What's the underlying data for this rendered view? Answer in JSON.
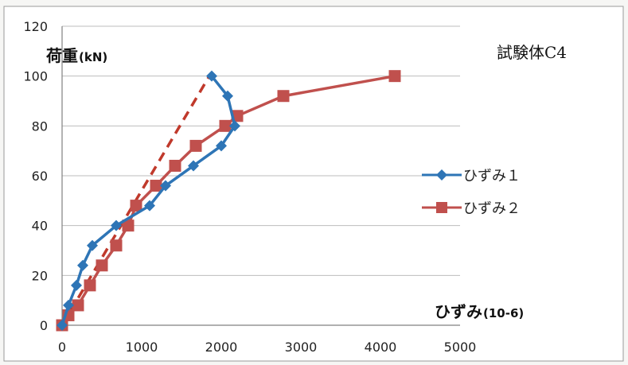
{
  "chart_data": {
    "type": "line",
    "title": "試験体C4",
    "ylabel_main": "荷重",
    "ylabel_unit": "(kN)",
    "xlabel_main": "ひずみ",
    "xlabel_unit": "(10-6)",
    "xlim": [
      0,
      5000
    ],
    "ylim": [
      0,
      120
    ],
    "x_ticks": [
      "0",
      "1000",
      "2000",
      "3000",
      "4000",
      "5000"
    ],
    "y_ticks": [
      "0",
      "20",
      "40",
      "60",
      "80",
      "100",
      "120"
    ],
    "grid": true,
    "legend_position": "right",
    "series": [
      {
        "name": "ひずみ１",
        "color": "#2e75b6",
        "marker": "diamond",
        "x": [
          0,
          80,
          180,
          260,
          380,
          680,
          1100,
          1300,
          1650,
          2000,
          2170,
          2080,
          1880
        ],
        "y": [
          0,
          8,
          16,
          24,
          32,
          40,
          48,
          56,
          64,
          72,
          80,
          92,
          100
        ]
      },
      {
        "name": "ひずみ２",
        "color": "#c0504d",
        "marker": "square",
        "x": [
          0,
          80,
          200,
          350,
          500,
          680,
          830,
          930,
          1180,
          1420,
          1680,
          2050,
          2200,
          2780,
          4180
        ],
        "y": [
          0,
          4,
          8,
          16,
          24,
          32,
          40,
          48,
          56,
          64,
          72,
          80,
          84,
          92,
          100
        ]
      }
    ],
    "reference_line": {
      "style": "dashed",
      "color": "#c0392b",
      "x": [
        0,
        1850
      ],
      "y": [
        0,
        100
      ]
    }
  }
}
